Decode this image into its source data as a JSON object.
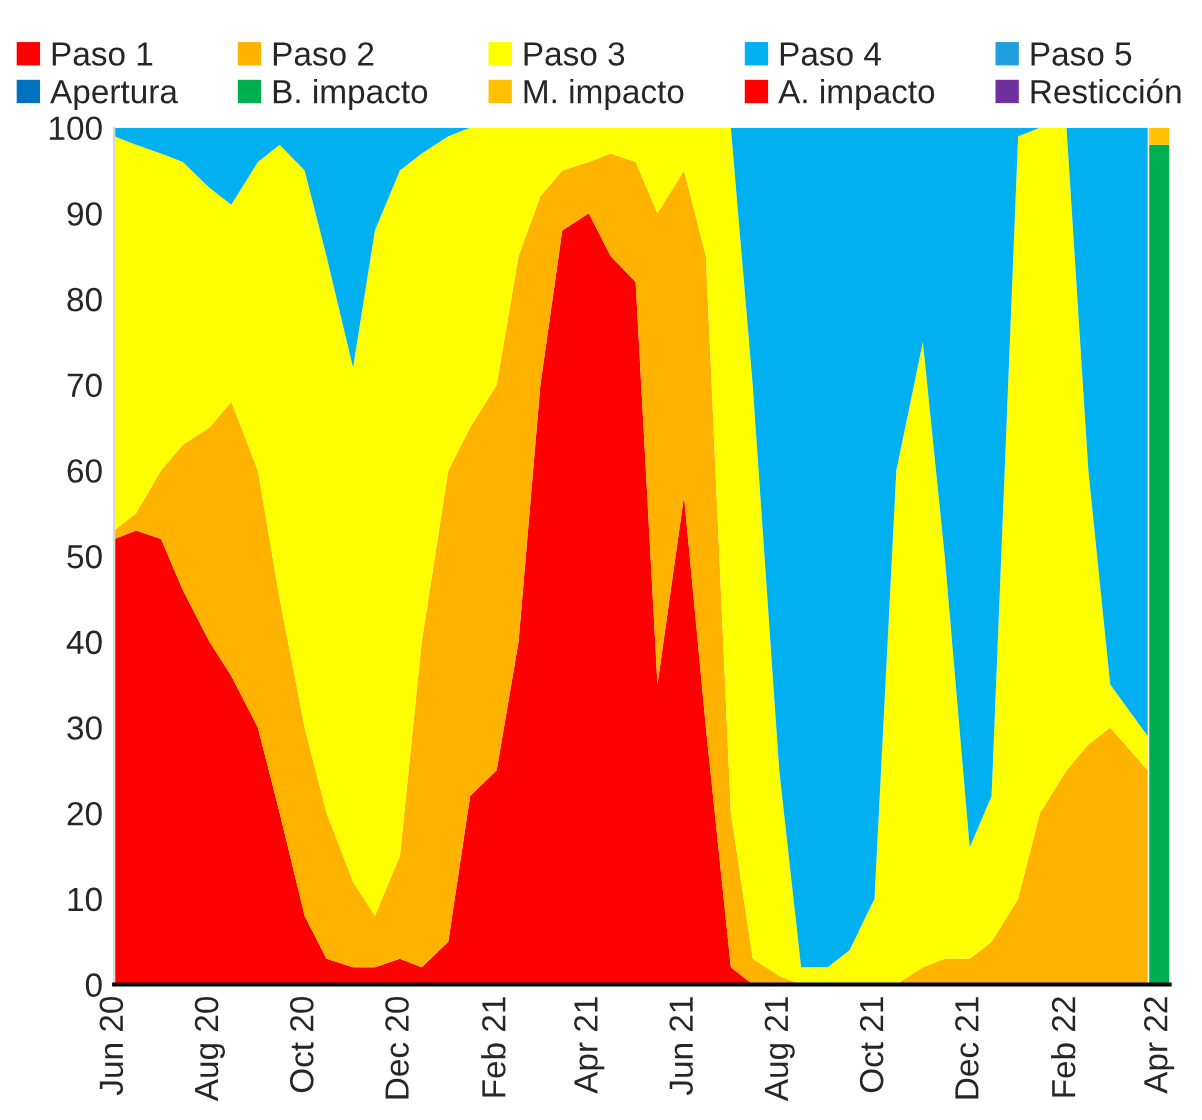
{
  "chart_data": {
    "type": "area",
    "stacked": true,
    "x": [
      "2020-06-01",
      "2020-06-15",
      "2020-07-01",
      "2020-07-15",
      "2020-08-01",
      "2020-08-15",
      "2020-09-01",
      "2020-09-15",
      "2020-10-01",
      "2020-10-15",
      "2020-11-01",
      "2020-11-15",
      "2020-12-01",
      "2020-12-15",
      "2021-01-01",
      "2021-01-15",
      "2021-02-01",
      "2021-02-15",
      "2021-03-01",
      "2021-03-15",
      "2021-04-01",
      "2021-04-15",
      "2021-05-01",
      "2021-05-15",
      "2021-06-01",
      "2021-06-15",
      "2021-07-01",
      "2021-07-15",
      "2021-08-01",
      "2021-08-15",
      "2021-09-01",
      "2021-09-15",
      "2021-10-01",
      "2021-10-15",
      "2021-11-01",
      "2021-11-15",
      "2021-12-01",
      "2021-12-15",
      "2022-01-01",
      "2022-01-15",
      "2022-02-01",
      "2022-02-15",
      "2022-03-01",
      "2022-03-25",
      "2022-03-26",
      "2022-04-08"
    ],
    "series": [
      {
        "name": "Paso 1",
        "color": "#ff0000",
        "values": [
          52,
          53,
          52,
          46,
          40,
          36,
          30,
          20,
          8,
          3,
          2,
          2,
          3,
          2,
          5,
          22,
          25,
          40,
          70,
          88,
          90,
          85,
          82,
          35,
          57,
          30,
          2,
          0,
          0,
          0,
          0,
          0,
          0,
          0,
          0,
          0,
          0,
          0,
          0,
          0,
          0,
          0,
          0,
          0,
          null,
          null
        ]
      },
      {
        "name": "Paso 2",
        "color": "#ffb300",
        "values": [
          1,
          2,
          8,
          17,
          25,
          32,
          30,
          25,
          22,
          17,
          10,
          6,
          12,
          38,
          55,
          43,
          45,
          45,
          22,
          7,
          6,
          12,
          14,
          55,
          38,
          55,
          18,
          3,
          1,
          0,
          0,
          0,
          0,
          0,
          2,
          3,
          3,
          5,
          10,
          20,
          25,
          28,
          30,
          25,
          null,
          null
        ]
      },
      {
        "name": "Paso 3",
        "color": "#ffff00",
        "values": [
          46,
          43,
          37,
          33,
          28,
          23,
          36,
          53,
          65,
          65,
          60,
          80,
          80,
          57,
          39,
          35,
          30,
          15,
          8,
          5,
          4,
          3,
          4,
          10,
          5,
          15,
          80,
          67,
          24,
          2,
          2,
          4,
          10,
          60,
          73,
          47,
          13,
          17,
          89,
          80,
          75,
          32,
          5,
          4,
          null,
          null
        ]
      },
      {
        "name": "Paso 4",
        "color": "#00b0f0",
        "values": [
          1,
          2,
          3,
          4,
          7,
          9,
          4,
          2,
          5,
          15,
          28,
          12,
          5,
          3,
          1,
          0,
          0,
          0,
          0,
          0,
          0,
          0,
          0,
          0,
          0,
          0,
          0,
          30,
          75,
          98,
          98,
          96,
          90,
          40,
          25,
          50,
          84,
          78,
          1,
          0,
          0,
          40,
          65,
          71,
          null,
          null
        ]
      },
      {
        "name": "Paso 5",
        "color": "#1f9fe0",
        "values": [
          null,
          null,
          null,
          null,
          null,
          null,
          null,
          null,
          null,
          null,
          null,
          null,
          null,
          null,
          null,
          null,
          null,
          null,
          null,
          null,
          null,
          null,
          null,
          null,
          null,
          null,
          null,
          null,
          null,
          null,
          null,
          null,
          null,
          null,
          null,
          null,
          null,
          null,
          null,
          null,
          null,
          null,
          null,
          null,
          null,
          null
        ]
      },
      {
        "name": "Apertura",
        "color": "#0070c0",
        "values": [
          null,
          null,
          null,
          null,
          null,
          null,
          null,
          null,
          null,
          null,
          null,
          null,
          null,
          null,
          null,
          null,
          null,
          null,
          null,
          null,
          null,
          null,
          null,
          null,
          null,
          null,
          null,
          null,
          null,
          null,
          null,
          null,
          null,
          null,
          null,
          null,
          null,
          null,
          null,
          null,
          null,
          null,
          null,
          null,
          null,
          null
        ]
      },
      {
        "name": "B. impacto",
        "color": "#00b050",
        "values": [
          null,
          null,
          null,
          null,
          null,
          null,
          null,
          null,
          null,
          null,
          null,
          null,
          null,
          null,
          null,
          null,
          null,
          null,
          null,
          null,
          null,
          null,
          null,
          null,
          null,
          null,
          null,
          null,
          null,
          null,
          null,
          null,
          null,
          null,
          null,
          null,
          null,
          null,
          null,
          null,
          null,
          null,
          null,
          null,
          98,
          98
        ]
      },
      {
        "name": "M. impacto",
        "color": "#ffc000",
        "values": [
          null,
          null,
          null,
          null,
          null,
          null,
          null,
          null,
          null,
          null,
          null,
          null,
          null,
          null,
          null,
          null,
          null,
          null,
          null,
          null,
          null,
          null,
          null,
          null,
          null,
          null,
          null,
          null,
          null,
          null,
          null,
          null,
          null,
          null,
          null,
          null,
          null,
          null,
          null,
          null,
          null,
          null,
          null,
          null,
          2,
          2
        ]
      },
      {
        "name": "A. impacto",
        "color": "#ff0000",
        "values": [
          null,
          null,
          null,
          null,
          null,
          null,
          null,
          null,
          null,
          null,
          null,
          null,
          null,
          null,
          null,
          null,
          null,
          null,
          null,
          null,
          null,
          null,
          null,
          null,
          null,
          null,
          null,
          null,
          null,
          null,
          null,
          null,
          null,
          null,
          null,
          null,
          null,
          null,
          null,
          null,
          null,
          null,
          null,
          null,
          null,
          null
        ]
      },
      {
        "name": "Resticción",
        "color": "#7030a0",
        "values": [
          null,
          null,
          null,
          null,
          null,
          null,
          null,
          null,
          null,
          null,
          null,
          null,
          null,
          null,
          null,
          null,
          null,
          null,
          null,
          null,
          null,
          null,
          null,
          null,
          null,
          null,
          null,
          null,
          null,
          null,
          null,
          null,
          null,
          null,
          null,
          null,
          null,
          null,
          null,
          null,
          null,
          null,
          null,
          null,
          null,
          null
        ]
      }
    ],
    "xlim": [
      "2020-06-01",
      "2022-04-08"
    ],
    "xticks": [
      {
        "value": "2020-06-01",
        "label": "Jun 20"
      },
      {
        "value": "2020-08-01",
        "label": "Aug 20"
      },
      {
        "value": "2020-10-01",
        "label": "Oct 20"
      },
      {
        "value": "2020-12-01",
        "label": "Dec 20"
      },
      {
        "value": "2021-02-01",
        "label": "Feb 21"
      },
      {
        "value": "2021-04-01",
        "label": "Apr 21"
      },
      {
        "value": "2021-06-01",
        "label": "Jun 21"
      },
      {
        "value": "2021-08-01",
        "label": "Aug 21"
      },
      {
        "value": "2021-10-01",
        "label": "Oct 21"
      },
      {
        "value": "2021-12-01",
        "label": "Dec 21"
      },
      {
        "value": "2022-02-01",
        "label": "Feb 22"
      },
      {
        "value": "2022-04-01",
        "label": "Apr 22"
      }
    ],
    "ylim": [
      0,
      100
    ],
    "yticks": [
      0,
      10,
      20,
      30,
      40,
      50,
      60,
      70,
      80,
      90,
      100
    ],
    "grid": false,
    "legend": "top"
  }
}
